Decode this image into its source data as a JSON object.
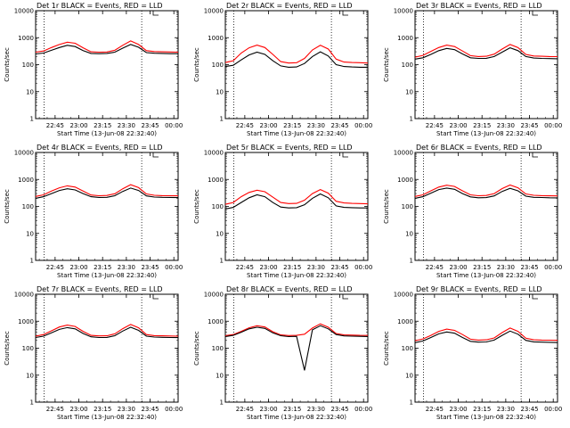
{
  "chart_data": [
    {
      "type": "line",
      "title": "Det 1r BLACK = Events, RED = LLD",
      "xlabel": "Start Time (13-Jun-08 22:32:40)",
      "ylabel": "Counts/sec",
      "x_ticks": [
        "22:45",
        "23:00",
        "23:15",
        "23:30",
        "23:45",
        "00:00"
      ],
      "y_ticks": [
        "1",
        "10",
        "100",
        "1000",
        "10000"
      ],
      "ylim": [
        1,
        10000
      ],
      "yscale": "log",
      "x_minutes": [
        0,
        5,
        10,
        15,
        20,
        25,
        30,
        35,
        40,
        45,
        50,
        55,
        60,
        65,
        70,
        75,
        80,
        85,
        90
      ],
      "dotted_lines_minutes": [
        5.3,
        67
      ],
      "series": [
        {
          "color": "#000000",
          "values": [
            250,
            270,
            340,
            430,
            520,
            470,
            330,
            260,
            255,
            260,
            290,
            410,
            560,
            440,
            280,
            265,
            260,
            255,
            255
          ]
        },
        {
          "color": "#ff0000",
          "values": [
            290,
            320,
            430,
            560,
            680,
            620,
            420,
            300,
            290,
            295,
            340,
            520,
            760,
            560,
            330,
            305,
            300,
            295,
            290
          ]
        }
      ]
    },
    {
      "type": "line",
      "title": "Det 2r BLACK = Events, RED = LLD",
      "xlabel": "Start Time (13-Jun-08 22:32:40)",
      "ylabel": "Counts/sec",
      "x_ticks": [
        "22:45",
        "23:00",
        "23:15",
        "23:30",
        "23:45",
        "00:00"
      ],
      "y_ticks": [
        "1",
        "10",
        "100",
        "1000",
        "10000"
      ],
      "ylim": [
        1,
        10000
      ],
      "yscale": "log",
      "x_minutes": [
        0,
        5,
        10,
        15,
        20,
        25,
        30,
        35,
        40,
        45,
        50,
        55,
        60,
        65,
        70,
        75,
        80,
        85,
        90
      ],
      "dotted_lines_minutes": [
        5.3,
        67
      ],
      "series": [
        {
          "color": "#000000",
          "values": [
            85,
            95,
            150,
            230,
            290,
            240,
            140,
            90,
            80,
            82,
            110,
            200,
            300,
            210,
            100,
            85,
            82,
            80,
            80
          ]
        },
        {
          "color": "#ff0000",
          "values": [
            120,
            140,
            270,
            420,
            530,
            430,
            240,
            130,
            115,
            118,
            170,
            350,
            520,
            380,
            160,
            125,
            120,
            118,
            115
          ]
        }
      ]
    },
    {
      "type": "line",
      "title": "Det 3r BLACK = Events, RED = LLD",
      "xlabel": "Start Time (13-Jun-08 22:32:40)",
      "ylabel": "Counts/sec",
      "x_ticks": [
        "22:45",
        "23:00",
        "23:15",
        "23:30",
        "23:45",
        "00:00"
      ],
      "y_ticks": [
        "1",
        "10",
        "100",
        "1000",
        "10000"
      ],
      "ylim": [
        1,
        10000
      ],
      "yscale": "log",
      "x_minutes": [
        0,
        5,
        10,
        15,
        20,
        25,
        30,
        35,
        40,
        45,
        50,
        55,
        60,
        65,
        70,
        75,
        80,
        85,
        90
      ],
      "dotted_lines_minutes": [
        5.3,
        67
      ],
      "series": [
        {
          "color": "#000000",
          "values": [
            160,
            180,
            240,
            330,
            400,
            360,
            250,
            180,
            170,
            172,
            200,
            290,
            420,
            330,
            200,
            175,
            170,
            168,
            165
          ]
        },
        {
          "color": "#ff0000",
          "values": [
            190,
            220,
            310,
            430,
            530,
            470,
            320,
            215,
            200,
            205,
            245,
            380,
            560,
            430,
            240,
            210,
            205,
            200,
            198
          ]
        }
      ]
    },
    {
      "type": "line",
      "title": "Det 4r BLACK = Events, RED = LLD",
      "xlabel": "Start Time (13-Jun-08 22:32:40)",
      "ylabel": "Counts/sec",
      "x_ticks": [
        "22:45",
        "23:00",
        "23:15",
        "23:30",
        "23:45",
        "00:00"
      ],
      "y_ticks": [
        "1",
        "10",
        "100",
        "1000",
        "10000"
      ],
      "ylim": [
        1,
        10000
      ],
      "yscale": "log",
      "x_minutes": [
        0,
        5,
        10,
        15,
        20,
        25,
        30,
        35,
        40,
        45,
        50,
        55,
        60,
        65,
        70,
        75,
        80,
        85,
        90
      ],
      "dotted_lines_minutes": [
        5.3,
        67
      ],
      "series": [
        {
          "color": "#000000",
          "values": [
            200,
            230,
            300,
            390,
            450,
            410,
            300,
            230,
            215,
            218,
            250,
            360,
            480,
            390,
            245,
            222,
            218,
            215,
            212
          ]
        },
        {
          "color": "#ff0000",
          "values": [
            235,
            270,
            370,
            490,
            580,
            520,
            370,
            265,
            250,
            255,
            295,
            450,
            640,
            500,
            290,
            258,
            252,
            250,
            248
          ]
        }
      ]
    },
    {
      "type": "line",
      "title": "Det 5r BLACK = Events, RED = LLD",
      "xlabel": "Start Time (13-Jun-08 22:32:40)",
      "ylabel": "Counts/sec",
      "x_ticks": [
        "22:45",
        "23:00",
        "23:15",
        "23:30",
        "23:45",
        "00:00"
      ],
      "y_ticks": [
        "1",
        "10",
        "100",
        "1000",
        "10000"
      ],
      "ylim": [
        1,
        10000
      ],
      "yscale": "log",
      "x_minutes": [
        0,
        5,
        10,
        15,
        20,
        25,
        30,
        35,
        40,
        45,
        50,
        55,
        60,
        65,
        70,
        75,
        80,
        85,
        90
      ],
      "dotted_lines_minutes": [
        5.3,
        67
      ],
      "series": [
        {
          "color": "#000000",
          "values": [
            80,
            92,
            140,
            210,
            270,
            230,
            140,
            95,
            88,
            90,
            115,
            200,
            290,
            210,
            105,
            92,
            90,
            88,
            88
          ]
        },
        {
          "color": "#ff0000",
          "values": [
            120,
            140,
            230,
            330,
            400,
            350,
            220,
            140,
            128,
            130,
            170,
            300,
            420,
            310,
            155,
            135,
            130,
            128,
            125
          ]
        }
      ]
    },
    {
      "type": "line",
      "title": "Det 6r BLACK = Events, RED = LLD",
      "xlabel": "Start Time (13-Jun-08 22:32:40)",
      "ylabel": "Counts/sec",
      "x_ticks": [
        "22:45",
        "23:00",
        "23:15",
        "23:30",
        "23:45",
        "00:00"
      ],
      "y_ticks": [
        "1",
        "10",
        "100",
        "1000",
        "10000"
      ],
      "ylim": [
        1,
        10000
      ],
      "yscale": "log",
      "x_minutes": [
        0,
        5,
        10,
        15,
        20,
        25,
        30,
        35,
        40,
        45,
        50,
        55,
        60,
        65,
        70,
        75,
        80,
        85,
        90
      ],
      "dotted_lines_minutes": [
        5.3,
        67
      ],
      "series": [
        {
          "color": "#000000",
          "values": [
            200,
            230,
            310,
            420,
            480,
            430,
            300,
            225,
            210,
            212,
            245,
            360,
            470,
            380,
            240,
            218,
            214,
            210,
            208
          ]
        },
        {
          "color": "#ff0000",
          "values": [
            235,
            270,
            380,
            520,
            610,
            550,
            380,
            270,
            250,
            255,
            300,
            460,
            620,
            490,
            290,
            258,
            252,
            248,
            245
          ]
        }
      ]
    },
    {
      "type": "line",
      "title": "Det 7r BLACK = Events, RED = LLD",
      "xlabel": "Start Time (13-Jun-08 22:32:40)",
      "ylabel": "Counts/sec",
      "x_ticks": [
        "22:45",
        "23:00",
        "23:15",
        "23:30",
        "23:45",
        "00:00"
      ],
      "y_ticks": [
        "1",
        "10",
        "100",
        "1000",
        "10000"
      ],
      "ylim": [
        1,
        10000
      ],
      "yscale": "log",
      "x_minutes": [
        0,
        5,
        10,
        15,
        20,
        25,
        30,
        35,
        40,
        45,
        50,
        55,
        60,
        65,
        70,
        75,
        80,
        85,
        90
      ],
      "dotted_lines_minutes": [
        5.3,
        67
      ],
      "series": [
        {
          "color": "#000000",
          "values": [
            250,
            280,
            370,
            500,
            580,
            520,
            350,
            265,
            250,
            252,
            290,
            430,
            600,
            460,
            280,
            258,
            254,
            250,
            248
          ]
        },
        {
          "color": "#ff0000",
          "values": [
            280,
            320,
            440,
            610,
            720,
            640,
            420,
            300,
            285,
            288,
            340,
            530,
            760,
            570,
            320,
            292,
            288,
            284,
            280
          ]
        }
      ]
    },
    {
      "type": "line",
      "title": "Det 8r BLACK = Events, RED = LLD",
      "xlabel": "Start Time (13-Jun-08 22:32:40)",
      "ylabel": "Counts/sec",
      "x_ticks": [
        "22:45",
        "23:00",
        "23:15",
        "23:30",
        "23:45",
        "00:00"
      ],
      "y_ticks": [
        "1",
        "10",
        "100",
        "1000",
        "10000"
      ],
      "ylim": [
        1,
        10000
      ],
      "yscale": "log",
      "x_minutes": [
        0,
        5,
        10,
        15,
        20,
        25,
        30,
        35,
        40,
        45,
        50,
        55,
        60,
        65,
        70,
        75,
        80,
        85,
        90
      ],
      "dotted_lines_minutes": [
        5.3,
        67
      ],
      "series": [
        {
          "color": "#000000",
          "values": [
            270,
            300,
            390,
            520,
            600,
            540,
            370,
            290,
            270,
            275,
            15,
            480,
            680,
            520,
            320,
            285,
            280,
            275,
            272
          ]
        },
        {
          "color": "#ff0000",
          "values": [
            290,
            320,
            420,
            570,
            680,
            610,
            410,
            310,
            295,
            300,
            330,
            560,
            800,
            600,
            350,
            310,
            305,
            300,
            298
          ]
        }
      ]
    },
    {
      "type": "line",
      "title": "Det 9r BLACK = Events, RED = LLD",
      "xlabel": "Start Time (13-Jun-08 22:32:40)",
      "ylabel": "Counts/sec",
      "x_ticks": [
        "22:45",
        "23:00",
        "23:15",
        "23:30",
        "23:45",
        "00:00"
      ],
      "y_ticks": [
        "1",
        "10",
        "100",
        "1000",
        "10000"
      ],
      "ylim": [
        1,
        10000
      ],
      "yscale": "log",
      "x_minutes": [
        0,
        5,
        10,
        15,
        20,
        25,
        30,
        35,
        40,
        45,
        50,
        55,
        60,
        65,
        70,
        75,
        80,
        85,
        90
      ],
      "dotted_lines_minutes": [
        5.3,
        67
      ],
      "series": [
        {
          "color": "#000000",
          "values": [
            160,
            185,
            250,
            340,
            400,
            360,
            250,
            180,
            168,
            170,
            200,
            300,
            430,
            330,
            195,
            172,
            168,
            165,
            162
          ]
        },
        {
          "color": "#ff0000",
          "values": [
            190,
            220,
            300,
            420,
            510,
            460,
            320,
            215,
            200,
            205,
            240,
            380,
            560,
            420,
            235,
            205,
            200,
            198,
            195
          ]
        }
      ]
    }
  ]
}
